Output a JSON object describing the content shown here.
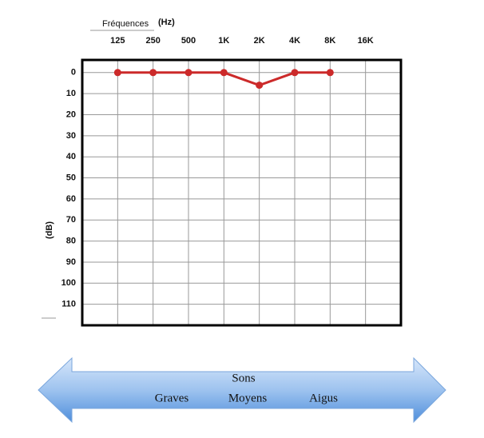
{
  "chart_data": {
    "type": "line",
    "xlabel": "Fréquences",
    "xunit": "(Hz)",
    "ylabel": "(dB)",
    "categories": [
      "125",
      "250",
      "500",
      "1K",
      "2K",
      "4K",
      "8K",
      "16K"
    ],
    "values": [
      0,
      0,
      0,
      0,
      6,
      0,
      0,
      null
    ],
    "color": "#cc2a2a",
    "ylim": [
      -6,
      120
    ],
    "y_inverted": true,
    "yticks": [
      0,
      10,
      20,
      30,
      40,
      50,
      60,
      70,
      80,
      90,
      100,
      110
    ],
    "grid": true
  },
  "arrow": {
    "title": "Sons",
    "labels": [
      "Graves",
      "Moyens",
      "Aigus"
    ]
  }
}
